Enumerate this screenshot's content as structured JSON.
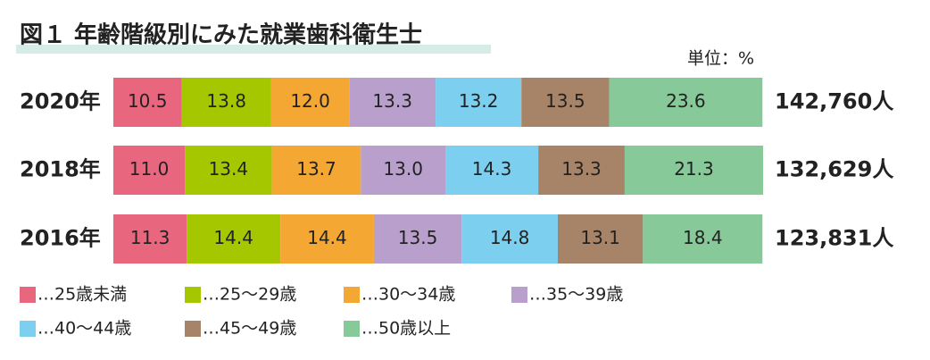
{
  "chart_data": {
    "type": "stacked-bar-horizontal",
    "title": "図１ 年齢階級別にみた就業歯科衛生士",
    "unit_label": "単位：%",
    "categories": [
      "2020年",
      "2018年",
      "2016年"
    ],
    "total_labels": [
      "142,760人",
      "132,629人",
      "123,831人"
    ],
    "xlim": [
      0,
      100
    ],
    "legend": "bottom",
    "series": [
      {
        "name": "…25歳未満",
        "color": "#e8677f",
        "values": [
          10.5,
          11.0,
          11.3
        ],
        "value_labels": [
          "10.5",
          "11.0",
          "11.3"
        ]
      },
      {
        "name": "…25～29歳",
        "color": "#a5c700",
        "values": [
          13.8,
          13.4,
          14.4
        ],
        "value_labels": [
          "13.8",
          "13.4",
          "14.4"
        ]
      },
      {
        "name": "…30～34歳",
        "color": "#f5a733",
        "values": [
          12.0,
          13.7,
          14.4
        ],
        "value_labels": [
          "12.0",
          "13.7",
          "14.4"
        ]
      },
      {
        "name": "…35～39歳",
        "color": "#b9a0cc",
        "values": [
          13.3,
          13.0,
          13.5
        ],
        "value_labels": [
          "13.3",
          "13.0",
          "13.5"
        ]
      },
      {
        "name": "…40～44歳",
        "color": "#7dcff0",
        "values": [
          13.2,
          14.3,
          14.8
        ],
        "value_labels": [
          "13.2",
          "14.3",
          "14.8"
        ]
      },
      {
        "name": "…45～49歳",
        "color": "#a78468",
        "values": [
          13.5,
          13.3,
          13.1
        ],
        "value_labels": [
          "13.5",
          "13.3",
          "13.1"
        ]
      },
      {
        "name": "…50歳以上",
        "color": "#87c999",
        "values": [
          23.6,
          21.3,
          18.4
        ],
        "value_labels": [
          "23.6",
          "21.3",
          "18.4"
        ]
      }
    ]
  }
}
